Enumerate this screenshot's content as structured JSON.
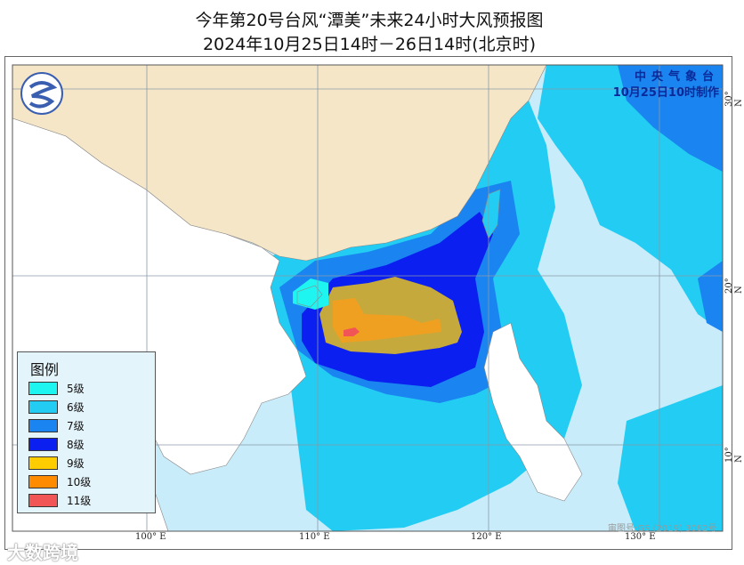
{
  "title": {
    "line1": "今年第20号台风“潭美”未来24小时大风预报图",
    "line2": "2024年10月25日14时－26日14时(北京时)"
  },
  "agency": {
    "name": "中央气象台",
    "issued": "10月25日10时制作"
  },
  "legend": {
    "title": "图例",
    "items": [
      {
        "label": "5级",
        "color": "#1ff5f0"
      },
      {
        "label": "6级",
        "color": "#22ccf2"
      },
      {
        "label": "7级",
        "color": "#1a84f0"
      },
      {
        "label": "8级",
        "color": "#0a1ff0"
      },
      {
        "label": "9级",
        "color": "#ffcc00"
      },
      {
        "label": "10级",
        "color": "#ff8c00"
      },
      {
        "label": "11级",
        "color": "#f25555"
      }
    ]
  },
  "axes": {
    "longitudes": [
      "100° E",
      "110° E",
      "120° E",
      "130° E"
    ],
    "latitudes": [
      "30° N",
      "20° N",
      "10° N"
    ]
  },
  "review_number": "审图号:GS (2019) 3082号",
  "watermark": "大数跨境",
  "colors": {
    "sea": "#c8ecfa",
    "china_land": "#f6e6c8",
    "other_land": "#ffffff",
    "wind9_blend": "#c6a93c",
    "wind10_blend": "#f0a020"
  }
}
